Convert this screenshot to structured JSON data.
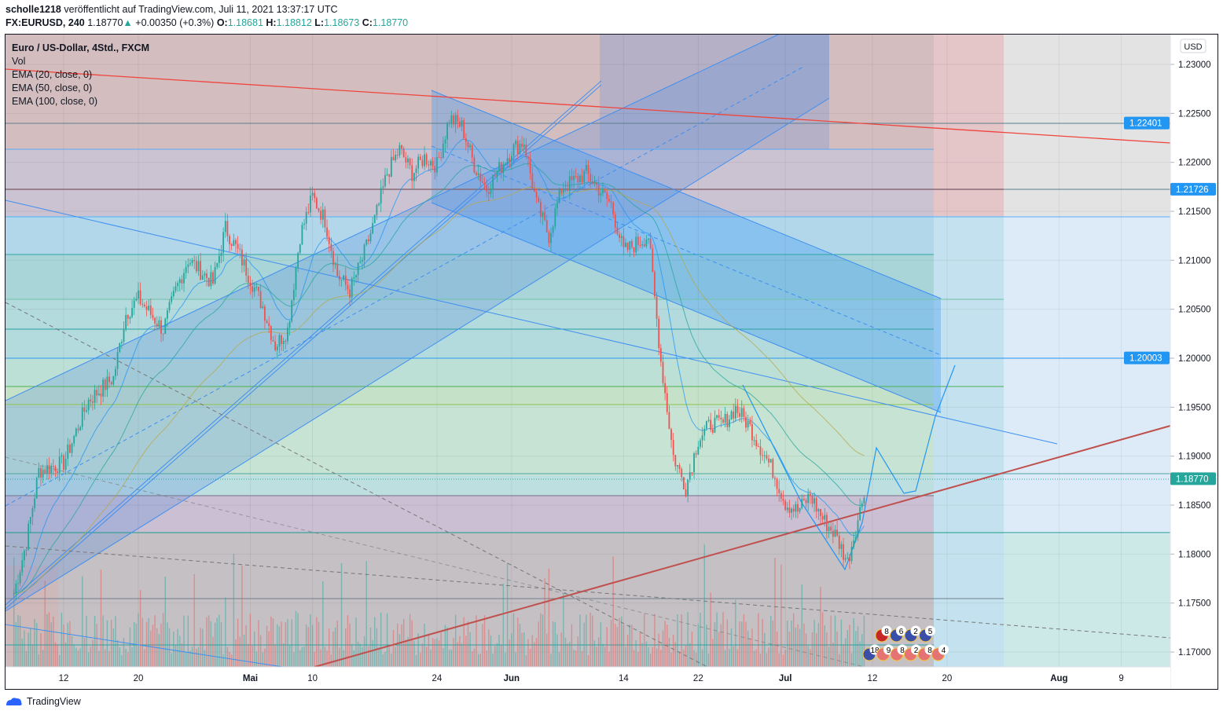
{
  "header": {
    "author": "scholle1218",
    "published": "veröffentlicht auf TradingView.com, Juli 11, 2021 13:37:17 UTC",
    "symbol": "FX:EURUSD, 240",
    "last": "1.18770",
    "change": "+0.00350 (+0.3%)",
    "o_label": "O:",
    "o": "1.18681",
    "h_label": "H:",
    "h": "1.18812",
    "l_label": "L:",
    "l": "1.18673",
    "c_label": "C:",
    "c": "1.18770",
    "up_icon": "triangle-up"
  },
  "legend": {
    "title": "Euro / US-Dollar, 4Std., FXCM",
    "items": [
      "Vol",
      "EMA (20, close, 0)",
      "EMA (50, close, 0)",
      "EMA (100, close, 0)"
    ]
  },
  "footer": {
    "brand": "TradingView"
  },
  "colors": {
    "up": "#26a69a",
    "down": "#ef5350",
    "accent": "#2196f3",
    "last_price": "#26a69a"
  },
  "chart_data": {
    "type": "candlestick",
    "currency": "USD",
    "ylim": [
      1.1685,
      1.2325
    ],
    "y_ticks": [
      "1.23000",
      "1.22500",
      "1.22000",
      "1.21500",
      "1.21000",
      "1.20500",
      "1.20000",
      "1.19500",
      "1.19000",
      "1.18500",
      "1.18000",
      "1.17500",
      "1.17000"
    ],
    "price_labels": [
      {
        "value": "1.22401",
        "color": "#2196f3"
      },
      {
        "value": "1.21726",
        "color": "#2196f3"
      },
      {
        "value": "1.20003",
        "color": "#2196f3"
      },
      {
        "value": "1.18770",
        "color": "#26a69a"
      }
    ],
    "x_ticks": [
      {
        "label": "12",
        "date": "2021-04-12"
      },
      {
        "label": "20",
        "date": "2021-04-20"
      },
      {
        "label": "Mai",
        "date": "2021-05-03"
      },
      {
        "label": "10",
        "date": "2021-05-10"
      },
      {
        "label": "24",
        "date": "2021-05-24"
      },
      {
        "label": "Jun",
        "date": "2021-06-01"
      },
      {
        "label": "14",
        "date": "2021-06-14"
      },
      {
        "label": "22",
        "date": "2021-06-22"
      },
      {
        "label": "Jul",
        "date": "2021-07-01"
      },
      {
        "label": "12",
        "date": "2021-07-12"
      },
      {
        "label": "20",
        "date": "2021-07-20"
      },
      {
        "label": "Aug",
        "date": "2021-08-02"
      },
      {
        "label": "9",
        "date": "2021-08-09"
      }
    ],
    "close_path": [
      [
        "2021-04-06",
        1.176
      ],
      [
        "2021-04-07",
        1.1812
      ],
      [
        "2021-04-08",
        1.1885
      ],
      [
        "2021-04-12",
        1.1893
      ],
      [
        "2021-04-14",
        1.1957
      ],
      [
        "2021-04-16",
        1.198
      ],
      [
        "2021-04-19",
        1.2045
      ],
      [
        "2021-04-20",
        1.2061
      ],
      [
        "2021-04-22",
        1.2029
      ],
      [
        "2021-04-23",
        1.2069
      ],
      [
        "2021-04-26",
        1.2101
      ],
      [
        "2021-04-28",
        1.2077
      ],
      [
        "2021-04-29",
        1.2133
      ],
      [
        "2021-04-30",
        1.2109
      ],
      [
        "2021-05-04",
        1.2053
      ],
      [
        "2021-05-05",
        1.2013
      ],
      [
        "2021-05-06",
        1.2029
      ],
      [
        "2021-05-07",
        1.2125
      ],
      [
        "2021-05-10",
        1.2165
      ],
      [
        "2021-05-11",
        1.2141
      ],
      [
        "2021-05-12",
        1.2085
      ],
      [
        "2021-05-13",
        1.2069
      ],
      [
        "2021-05-14",
        1.2101
      ],
      [
        "2021-05-17",
        1.2141
      ],
      [
        "2021-05-18",
        1.2189
      ],
      [
        "2021-05-19",
        1.2213
      ],
      [
        "2021-05-20",
        1.2189
      ],
      [
        "2021-05-21",
        1.2205
      ],
      [
        "2021-05-24",
        1.2197
      ],
      [
        "2021-05-25",
        1.2245
      ],
      [
        "2021-05-26",
        1.2237
      ],
      [
        "2021-05-27",
        1.2197
      ],
      [
        "2021-05-28",
        1.2173
      ],
      [
        "2021-06-01",
        1.2213
      ],
      [
        "2021-06-02",
        1.2221
      ],
      [
        "2021-06-03",
        1.2157
      ],
      [
        "2021-06-04",
        1.2125
      ],
      [
        "2021-06-07",
        1.2173
      ],
      [
        "2021-06-08",
        1.2181
      ],
      [
        "2021-06-09",
        1.2189
      ],
      [
        "2021-06-10",
        1.2173
      ],
      [
        "2021-06-11",
        1.2157
      ],
      [
        "2021-06-14",
        1.2109
      ],
      [
        "2021-06-15",
        1.2117
      ],
      [
        "2021-06-16",
        1.2125
      ],
      [
        "2021-06-17",
        1.1997
      ],
      [
        "2021-06-18",
        1.19
      ],
      [
        "2021-06-21",
        1.1868
      ],
      [
        "2021-06-22",
        1.1917
      ],
      [
        "2021-06-23",
        1.1933
      ],
      [
        "2021-06-24",
        1.1933
      ],
      [
        "2021-06-25",
        1.1949
      ],
      [
        "2021-06-28",
        1.1933
      ],
      [
        "2021-06-29",
        1.1909
      ],
      [
        "2021-06-30",
        1.1885
      ],
      [
        "2021-07-01",
        1.1852
      ],
      [
        "2021-07-02",
        1.1844
      ],
      [
        "2021-07-05",
        1.186
      ],
      [
        "2021-07-06",
        1.1836
      ],
      [
        "2021-07-07",
        1.182
      ],
      [
        "2021-07-08",
        1.1792
      ],
      [
        "2021-07-09",
        1.1844
      ],
      [
        "2021-07-10",
        1.1877
      ]
    ],
    "indicators": [
      "Vol",
      "EMA 20",
      "EMA 50",
      "EMA 100"
    ],
    "events_row1": [
      "8",
      "6",
      "2",
      "5"
    ],
    "events_row2": [
      "18",
      "9",
      "8",
      "2",
      "8",
      "4"
    ]
  }
}
